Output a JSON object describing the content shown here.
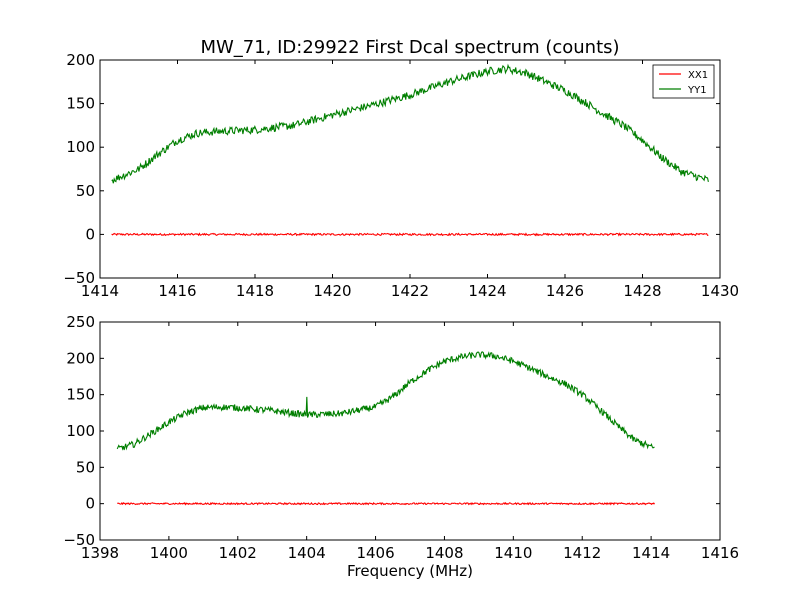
{
  "chart_data": [
    {
      "type": "line",
      "title": "MW_71, ID:29922 First Dcal spectrum (counts)",
      "xlabel": "",
      "ylabel": "",
      "xlim": [
        1414,
        1430
      ],
      "ylim": [
        -50,
        200
      ],
      "xticks": [
        1414,
        1416,
        1418,
        1420,
        1422,
        1424,
        1426,
        1428,
        1430
      ],
      "yticks": [
        -50,
        0,
        50,
        100,
        150,
        200
      ],
      "grid": false,
      "legend": {
        "placement": "top-right",
        "entries": [
          "XX1",
          "YY1"
        ]
      },
      "series": [
        {
          "name": "XX1",
          "color": "#ff0000",
          "x": [
            1414.3,
            1429.7
          ],
          "y": [
            0,
            0
          ]
        },
        {
          "name": "YY1",
          "color": "#007f00",
          "x": [
            1414.3,
            1415.0,
            1415.5,
            1416.0,
            1416.5,
            1417.0,
            1418.0,
            1419.0,
            1420.0,
            1421.0,
            1422.0,
            1423.0,
            1424.0,
            1424.5,
            1425.0,
            1425.5,
            1426.0,
            1426.5,
            1427.0,
            1427.5,
            1428.0,
            1428.5,
            1429.0,
            1429.7
          ],
          "y": [
            62,
            75,
            92,
            108,
            116,
            118,
            120,
            125,
            137,
            148,
            160,
            175,
            187,
            190,
            185,
            175,
            165,
            152,
            138,
            125,
            108,
            88,
            72,
            62
          ]
        }
      ]
    },
    {
      "type": "line",
      "title": "",
      "xlabel": "Frequency (MHz)",
      "ylabel": "",
      "xlim": [
        1398,
        1416
      ],
      "ylim": [
        -50,
        250
      ],
      "xticks": [
        1398,
        1400,
        1402,
        1404,
        1406,
        1408,
        1410,
        1412,
        1414,
        1416
      ],
      "yticks": [
        -50,
        0,
        50,
        100,
        150,
        200,
        250
      ],
      "grid": false,
      "series": [
        {
          "name": "XX1",
          "color": "#ff0000",
          "x": [
            1398.5,
            1414.1
          ],
          "y": [
            0,
            0
          ]
        },
        {
          "name": "YY1",
          "color": "#007f00",
          "x": [
            1398.5,
            1399.0,
            1399.5,
            1400.0,
            1400.5,
            1401.0,
            1401.5,
            1402.0,
            1403.0,
            1404.0,
            1405.0,
            1406.0,
            1406.5,
            1407.0,
            1407.5,
            1408.0,
            1408.5,
            1409.0,
            1409.5,
            1410.0,
            1410.5,
            1411.0,
            1411.5,
            1412.0,
            1412.5,
            1413.0,
            1413.5,
            1414.1
          ],
          "y": [
            75,
            82,
            97,
            112,
            125,
            132,
            133,
            132,
            128,
            122,
            124,
            133,
            147,
            167,
            183,
            196,
            202,
            205,
            203,
            196,
            186,
            175,
            165,
            150,
            130,
            108,
            88,
            76
          ],
          "spikes": [
            {
              "x": 1404.0,
              "y": 147
            }
          ]
        }
      ]
    }
  ]
}
